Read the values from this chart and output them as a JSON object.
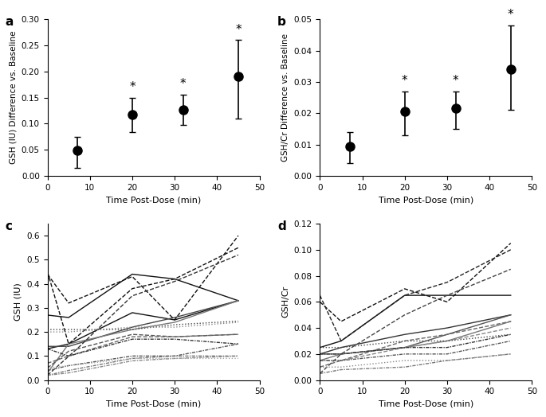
{
  "panel_a": {
    "x": [
      7,
      20,
      32,
      45
    ],
    "y": [
      0.048,
      0.118,
      0.127,
      0.19
    ],
    "yerr_low": [
      0.033,
      0.035,
      0.029,
      0.08
    ],
    "yerr_high": [
      0.027,
      0.032,
      0.028,
      0.07
    ],
    "sig": [
      false,
      true,
      true,
      true
    ],
    "ylabel": "GSH (IU) Difference vs. Baseline",
    "ylim": [
      0.0,
      0.3
    ],
    "yticks": [
      0.0,
      0.05,
      0.1,
      0.15,
      0.2,
      0.25,
      0.3
    ],
    "label": "a"
  },
  "panel_b": {
    "x": [
      7,
      20,
      32,
      45
    ],
    "y": [
      0.0095,
      0.0205,
      0.0215,
      0.034
    ],
    "yerr_low": [
      0.0055,
      0.0075,
      0.0065,
      0.013
    ],
    "yerr_high": [
      0.0045,
      0.0065,
      0.0055,
      0.014
    ],
    "sig": [
      false,
      true,
      true,
      true
    ],
    "ylabel": "GSH/Cr Difference vs. Baseline",
    "ylim": [
      0.0,
      0.05
    ],
    "yticks": [
      0.0,
      0.01,
      0.02,
      0.03,
      0.04,
      0.05
    ],
    "label": "b"
  },
  "panel_c": {
    "xlabel": "Time Post-Dose (min)",
    "ylabel": "GSH (IU)",
    "ylim": [
      0.0,
      0.65
    ],
    "yticks": [
      0.0,
      0.1,
      0.2,
      0.3,
      0.4,
      0.5,
      0.6
    ],
    "xlim": [
      0,
      50
    ],
    "label": "c",
    "lines": [
      {
        "x": [
          0,
          5,
          20,
          30,
          45
        ],
        "y": [
          0.27,
          0.26,
          0.44,
          0.42,
          0.33
        ],
        "style": "solid",
        "color": "#111111"
      },
      {
        "x": [
          0,
          5,
          20,
          30,
          45
        ],
        "y": [
          0.13,
          0.15,
          0.28,
          0.25,
          0.33
        ],
        "style": "solid",
        "color": "#111111"
      },
      {
        "x": [
          0,
          5,
          20,
          30,
          45
        ],
        "y": [
          0.14,
          0.14,
          0.22,
          0.26,
          0.33
        ],
        "style": "solid",
        "color": "#444444"
      },
      {
        "x": [
          0,
          5,
          20,
          30,
          45
        ],
        "y": [
          0.03,
          0.15,
          0.21,
          0.24,
          0.33
        ],
        "style": "solid",
        "color": "#777777"
      },
      {
        "x": [
          0,
          5,
          20,
          30,
          45
        ],
        "y": [
          0.44,
          0.32,
          0.43,
          0.25,
          0.6
        ],
        "style": "dashed",
        "color": "#111111"
      },
      {
        "x": [
          0,
          5,
          20,
          30,
          45
        ],
        "y": [
          0.45,
          0.15,
          0.38,
          0.42,
          0.55
        ],
        "style": "dashed",
        "color": "#111111"
      },
      {
        "x": [
          0,
          7,
          20,
          30,
          45
        ],
        "y": [
          0.02,
          0.13,
          0.35,
          0.41,
          0.52
        ],
        "style": "dashed",
        "color": "#333333"
      },
      {
        "x": [
          0,
          5,
          20,
          30,
          45
        ],
        "y": [
          0.05,
          0.12,
          0.19,
          0.18,
          0.19
        ],
        "style": "dashed",
        "color": "#555555"
      },
      {
        "x": [
          0,
          5,
          20,
          30,
          45
        ],
        "y": [
          0.07,
          0.1,
          0.18,
          0.18,
          0.19
        ],
        "style": "dashed",
        "color": "#666666"
      },
      {
        "x": [
          0,
          5,
          20,
          30,
          45
        ],
        "y": [
          0.13,
          0.1,
          0.17,
          0.17,
          0.15
        ],
        "style": "dashdot",
        "color": "#333333"
      },
      {
        "x": [
          0,
          5,
          20,
          30,
          45
        ],
        "y": [
          0.04,
          0.06,
          0.1,
          0.1,
          0.15
        ],
        "style": "dashdot",
        "color": "#555555"
      },
      {
        "x": [
          0,
          5,
          20,
          30,
          45
        ],
        "y": [
          0.02,
          0.04,
          0.09,
          0.1,
          0.1
        ],
        "style": "dashdot",
        "color": "#777777"
      },
      {
        "x": [
          0,
          5,
          20,
          30,
          45
        ],
        "y": [
          0.02,
          0.03,
          0.08,
          0.09,
          0.1
        ],
        "style": "dashdot",
        "color": "#888888"
      },
      {
        "x": [
          0,
          5,
          20,
          30,
          45
        ],
        "y": [
          0.21,
          0.21,
          0.21,
          0.23,
          0.245
        ],
        "style": "dotted",
        "color": "#444444"
      },
      {
        "x": [
          0,
          5,
          20,
          30,
          45
        ],
        "y": [
          0.2,
          0.2,
          0.22,
          0.22,
          0.24
        ],
        "style": "dotted",
        "color": "#888888"
      },
      {
        "x": [
          0,
          5,
          20,
          30,
          45
        ],
        "y": [
          0.05,
          0.06,
          0.09,
          0.09,
          0.09
        ],
        "style": "dotted",
        "color": "#aaaaaa"
      }
    ]
  },
  "panel_d": {
    "xlabel": "Time Post-Dose (min)",
    "ylabel": "GSH/Cr",
    "ylim": [
      0.0,
      0.12
    ],
    "yticks": [
      0.0,
      0.02,
      0.04,
      0.06,
      0.08,
      0.1,
      0.12
    ],
    "xlim": [
      0,
      50
    ],
    "label": "d",
    "lines": [
      {
        "x": [
          0,
          5,
          20,
          30,
          45
        ],
        "y": [
          0.025,
          0.03,
          0.065,
          0.065,
          0.065
        ],
        "style": "solid",
        "color": "#111111"
      },
      {
        "x": [
          0,
          5,
          20,
          30,
          45
        ],
        "y": [
          0.02,
          0.025,
          0.035,
          0.04,
          0.05
        ],
        "style": "solid",
        "color": "#333333"
      },
      {
        "x": [
          0,
          5,
          20,
          30,
          45
        ],
        "y": [
          0.02,
          0.02,
          0.025,
          0.035,
          0.05
        ],
        "style": "solid",
        "color": "#555555"
      },
      {
        "x": [
          0,
          5,
          20,
          30,
          45
        ],
        "y": [
          0.015,
          0.02,
          0.025,
          0.03,
          0.045
        ],
        "style": "solid",
        "color": "#777777"
      },
      {
        "x": [
          0,
          5,
          20,
          30,
          45
        ],
        "y": [
          0.06,
          0.045,
          0.07,
          0.06,
          0.105
        ],
        "style": "dashed",
        "color": "#111111"
      },
      {
        "x": [
          0,
          5,
          20,
          30,
          45
        ],
        "y": [
          0.065,
          0.03,
          0.065,
          0.075,
          0.1
        ],
        "style": "dashed",
        "color": "#222222"
      },
      {
        "x": [
          0,
          5,
          20,
          30,
          45
        ],
        "y": [
          0.005,
          0.02,
          0.05,
          0.065,
          0.085
        ],
        "style": "dashed",
        "color": "#444444"
      },
      {
        "x": [
          0,
          5,
          20,
          30,
          45
        ],
        "y": [
          0.01,
          0.015,
          0.03,
          0.035,
          0.045
        ],
        "style": "dashed",
        "color": "#666666"
      },
      {
        "x": [
          0,
          5,
          20,
          30,
          45
        ],
        "y": [
          0.015,
          0.015,
          0.025,
          0.03,
          0.04
        ],
        "style": "dashed",
        "color": "#888888"
      },
      {
        "x": [
          0,
          5,
          20,
          30,
          45
        ],
        "y": [
          0.02,
          0.02,
          0.025,
          0.025,
          0.035
        ],
        "style": "dashdot",
        "color": "#333333"
      },
      {
        "x": [
          0,
          5,
          20,
          30,
          45
        ],
        "y": [
          0.015,
          0.015,
          0.02,
          0.02,
          0.03
        ],
        "style": "dashdot",
        "color": "#555555"
      },
      {
        "x": [
          0,
          5,
          20,
          30,
          45
        ],
        "y": [
          0.005,
          0.008,
          0.01,
          0.015,
          0.02
        ],
        "style": "dashdot",
        "color": "#777777"
      },
      {
        "x": [
          0,
          5,
          20,
          30,
          45
        ],
        "y": [
          0.025,
          0.025,
          0.03,
          0.03,
          0.035
        ],
        "style": "dotted",
        "color": "#444444"
      },
      {
        "x": [
          0,
          5,
          20,
          30,
          45
        ],
        "y": [
          0.01,
          0.01,
          0.015,
          0.015,
          0.02
        ],
        "style": "dotted",
        "color": "#888888"
      }
    ]
  },
  "xlabel_ab": "Time Post-Dose (min)",
  "xlim_ab": [
    0,
    50
  ],
  "xticks_ab": [
    0,
    10,
    20,
    30,
    40,
    50
  ]
}
